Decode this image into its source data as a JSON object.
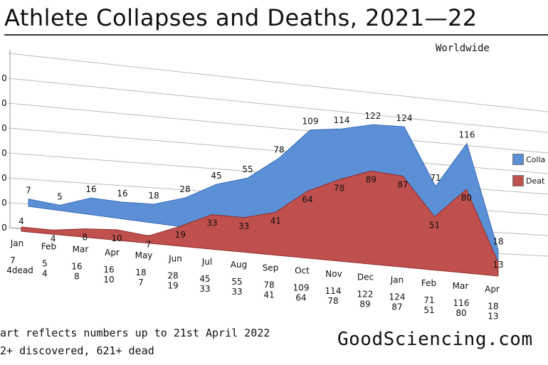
{
  "title": "Athlete Collapses and Deaths, 2021—22",
  "subtitle": "Worldwide",
  "notes": [
    "art reflects numbers up to 21st April 2022",
    "2+ discovered, 621+ dead"
  ],
  "brand": "GoodSciencing.com",
  "y_tick_labels": [
    "0",
    "0",
    "0",
    "0",
    "0",
    "0",
    "0"
  ],
  "table_label": "4dead",
  "chart_data": {
    "type": "area",
    "categories": [
      "Jan",
      "Feb",
      "Mar",
      "Apr",
      "May",
      "Jun",
      "Jul",
      "Aug",
      "Sep",
      "Oct",
      "Nov",
      "Dec",
      "Jan",
      "Feb",
      "Mar",
      "Apr"
    ],
    "series": [
      {
        "name": "Colla",
        "color": "#5b8fd6",
        "values": [
          7,
          5,
          16,
          16,
          18,
          28,
          45,
          55,
          78,
          109,
          114,
          122,
          124,
          71,
          116,
          18
        ]
      },
      {
        "name": "Deat",
        "color": "#c0504d",
        "values": [
          4,
          4,
          8,
          10,
          7,
          19,
          33,
          33,
          41,
          64,
          78,
          89,
          87,
          51,
          80,
          13
        ]
      }
    ],
    "title": "Athlete Collapses and Deaths, 2021—22",
    "legend": "right"
  }
}
